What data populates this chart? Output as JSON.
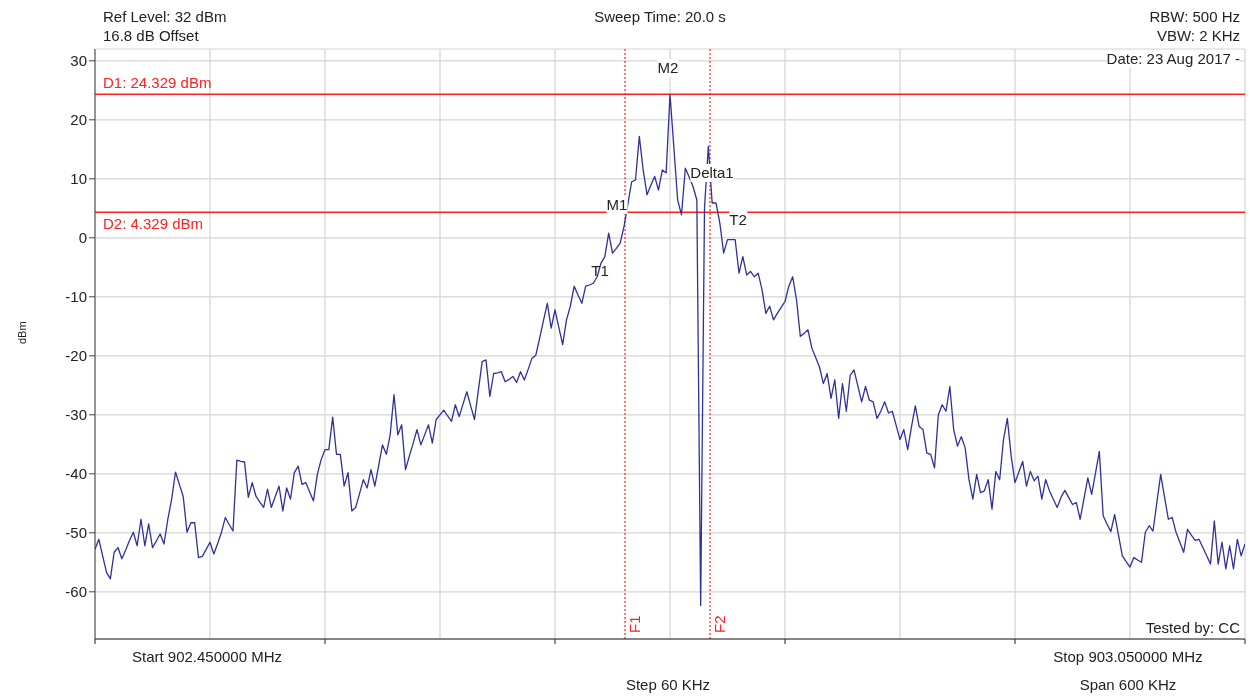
{
  "chart_data": {
    "type": "line",
    "ylabel": "dBm",
    "ylim": [
      -68,
      32
    ],
    "categories": [
      null,
      null,
      null,
      null,
      null,
      null,
      null,
      null,
      null,
      null,
      null,
      null,
      null,
      null,
      null,
      null,
      null,
      null,
      null,
      null,
      null,
      null,
      null,
      null,
      null,
      null,
      null,
      null,
      null,
      null,
      null,
      null,
      null,
      null,
      null,
      null,
      null,
      null,
      null,
      null,
      null,
      null,
      null,
      null,
      null,
      null,
      null,
      null,
      null,
      null,
      null,
      null,
      null,
      null,
      null,
      null,
      null,
      null,
      null,
      null,
      null,
      null,
      null,
      null,
      null,
      null,
      null,
      null,
      null,
      null,
      null,
      null,
      null,
      null,
      null,
      null,
      null,
      null,
      null,
      null,
      null,
      null,
      null,
      null,
      null,
      null,
      null,
      null,
      null,
      null,
      null,
      null,
      null,
      null,
      null,
      null,
      null,
      null,
      null,
      null,
      null,
      null,
      null,
      null,
      null,
      null,
      null,
      null,
      null,
      null,
      null,
      null,
      null,
      null,
      null,
      null,
      null,
      null,
      null,
      null,
      null,
      null,
      null,
      null,
      null,
      null,
      null,
      null,
      null,
      null,
      null,
      null,
      null,
      null,
      null,
      null,
      null,
      null,
      null,
      null,
      null,
      null,
      null,
      null,
      null,
      null,
      null,
      null,
      null,
      null,
      null,
      null,
      null,
      null,
      null,
      null,
      null,
      null,
      null,
      null,
      null,
      null,
      null,
      null,
      null,
      null,
      null,
      null,
      null,
      null,
      null,
      null,
      null,
      null,
      null,
      null,
      null,
      null,
      null,
      null,
      null,
      null,
      null,
      null,
      null,
      null,
      null,
      null,
      null,
      null,
      null,
      null,
      null,
      null,
      null,
      null,
      null,
      null,
      null,
      null,
      null,
      null,
      null,
      null,
      null,
      null,
      null,
      null,
      null,
      null,
      null,
      null,
      null,
      null,
      null,
      null,
      null,
      null,
      null,
      null,
      null,
      null,
      null,
      null,
      null,
      null,
      null,
      null,
      null,
      null,
      null,
      null,
      null,
      null,
      null,
      null,
      null,
      null,
      null,
      null,
      null,
      null,
      null,
      null,
      null,
      null,
      null,
      null,
      null,
      null,
      null,
      null,
      null,
      null,
      null,
      null,
      null,
      null,
      null,
      null,
      null,
      null,
      null,
      null,
      null,
      null,
      null,
      null,
      null,
      null,
      null,
      null,
      null,
      null,
      null,
      null,
      null,
      null,
      null,
      null,
      null,
      null,
      null,
      null,
      null,
      null,
      null,
      null,
      null,
      null,
      null,
      null,
      null,
      null,
      null,
      null,
      null,
      null,
      null,
      null,
      null
    ],
    "yticks": [
      -60,
      -50,
      -40,
      -30,
      -20,
      -10,
      0,
      10,
      20,
      30
    ],
    "tick_labels": "y",
    "grid": true,
    "marker": "none",
    "line_style": "solid",
    "series": [
      {
        "color": "#30309a",
        "values": [
          -52.8,
          -51.1,
          -53.9,
          -56.7,
          -57.8,
          -53.3,
          -52.5,
          -54.4,
          -52.9,
          -51.3,
          -49.9,
          -52.2,
          -47.7,
          -52.2,
          -48.5,
          -52.5,
          -51.4,
          -50.2,
          -51.9,
          -47.7,
          -44.3,
          -39.7,
          -41.8,
          -43.8,
          -49.9,
          -48.3,
          -48.3,
          -54.2,
          -54.0,
          -52.8,
          -51.6,
          -53.6,
          -51.8,
          -49.9,
          -47.4,
          -48.6,
          -49.7,
          -37.7,
          -37.9,
          -38.0,
          -44.0,
          -41.5,
          -43.8,
          -44.8,
          -45.7,
          -42.6,
          -45.7,
          -43.9,
          -42.1,
          -46.3,
          -42.4,
          -44.3,
          -39.8,
          -38.7,
          -41.8,
          -41.5,
          -43.1,
          -44.6,
          -40.1,
          -37.6,
          -35.9,
          -35.9,
          -30.4,
          -36.7,
          -36.7,
          -42.1,
          -39.8,
          -46.3,
          -45.7,
          -43.4,
          -41.0,
          -42.4,
          -39.3,
          -42.1,
          -38.6,
          -35.1,
          -36.7,
          -33.4,
          -26.6,
          -33.4,
          -31.7,
          -39.3,
          -37.0,
          -34.8,
          -32.5,
          -35.1,
          -33.4,
          -31.7,
          -34.8,
          -30.8,
          -30.0,
          -29.2,
          -30.2,
          -31.1,
          -28.3,
          -30.3,
          -28.2,
          -26.1,
          -28.5,
          -30.8,
          -25.9,
          -21.0,
          -20.7,
          -26.9,
          -23.0,
          -22.9,
          -22.7,
          -24.4,
          -24.0,
          -23.5,
          -24.5,
          -22.7,
          -24.1,
          -22.3,
          -20.4,
          -19.9,
          -17.0,
          -14.0,
          -11.1,
          -15.3,
          -12.2,
          -15.2,
          -18.1,
          -13.9,
          -11.6,
          -8.2,
          -9.7,
          -11.1,
          -8.2,
          -8.0,
          -7.7,
          -6.6,
          -4.3,
          -3.2,
          0.8,
          -2.6,
          -1.8,
          -0.9,
          1.9,
          5.7,
          9.5,
          9.8,
          17.2,
          11.5,
          7.3,
          8.9,
          10.4,
          8.1,
          11.5,
          11.0,
          24.3,
          15.4,
          6.4,
          3.9,
          11.8,
          10.3,
          8.7,
          6.4,
          -62.3,
          5.0,
          15.5,
          5.9,
          5.9,
          2.5,
          -2.6,
          -0.3,
          -0.3,
          -0.3,
          -6.0,
          -3.2,
          -6.3,
          -5.7,
          -6.6,
          -6.0,
          -8.8,
          -12.8,
          -11.6,
          -13.9,
          -12.8,
          -11.8,
          -10.8,
          -8.2,
          -6.6,
          -10.5,
          -16.7,
          -16.2,
          -15.6,
          -18.7,
          -20.3,
          -21.9,
          -24.7,
          -23.0,
          -27.2,
          -24.1,
          -30.6,
          -24.7,
          -29.4,
          -23.3,
          -22.4,
          -25.1,
          -27.8,
          -25.2,
          -27.5,
          -27.8,
          -30.6,
          -29.4,
          -27.8,
          -29.7,
          -29.4,
          -31.8,
          -34.2,
          -32.5,
          -35.9,
          -32.0,
          -28.5,
          -32.0,
          -32.5,
          -36.5,
          -36.7,
          -39.0,
          -30.0,
          -28.3,
          -29.4,
          -25.2,
          -32.5,
          -35.3,
          -33.7,
          -35.6,
          -41.0,
          -44.3,
          -40.1,
          -43.2,
          -42.9,
          -41.0,
          -46.0,
          -39.6,
          -41.0,
          -34.2,
          -30.6,
          -37.0,
          -41.5,
          -39.7,
          -37.9,
          -42.1,
          -39.6,
          -41.2,
          -40.4,
          -44.3,
          -41.0,
          -42.9,
          -44.3,
          -45.7,
          -44.0,
          -42.8,
          -44.0,
          -45.2,
          -44.9,
          -47.7,
          -44.2,
          -40.7,
          -43.5,
          -39.9,
          -36.2,
          -47.1,
          -48.5,
          -49.8,
          -46.9,
          -50.4,
          -53.9,
          -54.9,
          -55.8,
          -54.2,
          -54.6,
          -55.0,
          -49.9,
          -48.8,
          -49.7,
          -44.9,
          -40.1,
          -43.9,
          -47.7,
          -47.4,
          -49.9,
          -51.6,
          -53.3,
          -49.4,
          -50.4,
          -51.3,
          -51.1,
          -52.5,
          -53.9,
          -55.3,
          -48.0,
          -55.3,
          -51.6,
          -56.1,
          -52.2,
          -56.1,
          -51.1,
          -53.9,
          -51.9
        ]
      }
    ],
    "ref_lines": [
      {
        "axis": "y",
        "value": 24.329,
        "label": "D1: 24.329 dBm",
        "color": "#ff2020",
        "line_style": "solid"
      },
      {
        "axis": "y",
        "value": 4.329,
        "label": "D2: 4.329 dBm",
        "color": "#ff2020",
        "line_style": "solid"
      }
    ],
    "annotations": [
      "Ref Level: 32 dBm",
      "16.8 dB Offset",
      "Sweep Time: 20.0 s",
      "RBW: 500 Hz",
      "VBW: 2 KHz",
      "Date: 23 Aug 2017 -",
      "Tested by: CC",
      "Start 902.450000 MHz",
      "Stop 903.050000 MHz",
      "Step 60 KHz",
      "Span 600 KHz",
      "M1",
      "M2",
      "T1",
      "Delta1",
      "T2",
      "F1",
      "F2"
    ]
  }
}
